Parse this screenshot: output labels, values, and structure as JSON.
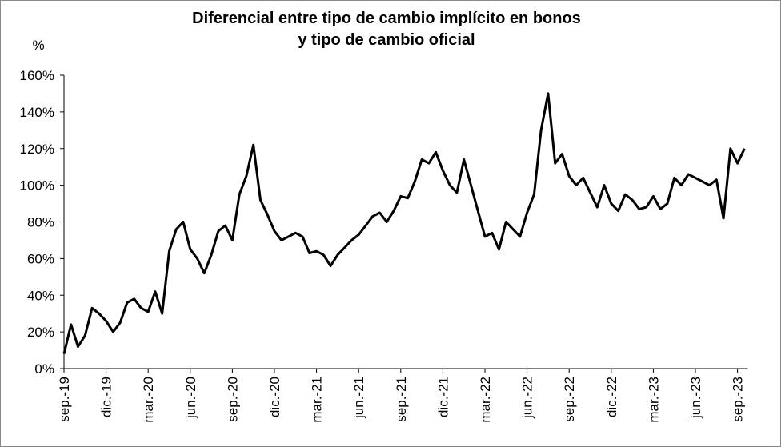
{
  "chart_data": {
    "type": "line",
    "title": [
      "Diferencial entre tipo de cambio implícito en bonos",
      "y tipo de cambio oficial"
    ],
    "y_label": "%",
    "categories": [
      "sep.-19",
      null,
      null,
      null,
      null,
      null,
      "dic.-19",
      null,
      null,
      null,
      null,
      null,
      "mar.-20",
      null,
      null,
      null,
      null,
      null,
      "jun.-20",
      null,
      null,
      null,
      null,
      null,
      "sep.-20",
      null,
      null,
      null,
      null,
      null,
      "dic.-20",
      null,
      null,
      null,
      null,
      null,
      "mar.-21",
      null,
      null,
      null,
      null,
      null,
      "jun.-21",
      null,
      null,
      null,
      null,
      null,
      "sep.-21",
      null,
      null,
      null,
      null,
      null,
      "dic.-21",
      null,
      null,
      null,
      null,
      null,
      "mar.-22",
      null,
      null,
      null,
      null,
      null,
      "jun.-22",
      null,
      null,
      null,
      null,
      null,
      "sep.-22",
      null,
      null,
      null,
      null,
      null,
      "dic.-22",
      null,
      null,
      null,
      null,
      null,
      "mar.-23",
      null,
      null,
      null,
      null,
      null,
      "jun.-23",
      null,
      null,
      null,
      null,
      null,
      "sep.-23",
      null
    ],
    "values": [
      8,
      24,
      12,
      18,
      33,
      30,
      26,
      20,
      25,
      36,
      38,
      33,
      31,
      42,
      30,
      64,
      76,
      80,
      65,
      60,
      52,
      62,
      75,
      78,
      70,
      95,
      105,
      122,
      92,
      84,
      75,
      70,
      72,
      74,
      72,
      63,
      64,
      62,
      56,
      62,
      66,
      70,
      73,
      78,
      83,
      85,
      80,
      86,
      94,
      93,
      102,
      114,
      112,
      118,
      108,
      100,
      96,
      114,
      100,
      86,
      72,
      74,
      65,
      80,
      76,
      72,
      85,
      95,
      130,
      150,
      112,
      117,
      105,
      100,
      104,
      96,
      88,
      100,
      90,
      86,
      95,
      92,
      87,
      88,
      94,
      87,
      90,
      104,
      100,
      106,
      104,
      102,
      100,
      103,
      82,
      120,
      112,
      120
    ],
    "color": "#000000",
    "ylim": [
      0,
      160
    ],
    "yticks": [
      {
        "value": 0,
        "label": "0%"
      },
      {
        "value": 20,
        "label": "20%"
      },
      {
        "value": 40,
        "label": "40%"
      },
      {
        "value": 60,
        "label": "60%"
      },
      {
        "value": 80,
        "label": "80%"
      },
      {
        "value": 100,
        "label": "100%"
      },
      {
        "value": 120,
        "label": "120%"
      },
      {
        "value": 140,
        "label": "140%"
      },
      {
        "value": 160,
        "label": "160%"
      }
    ]
  }
}
